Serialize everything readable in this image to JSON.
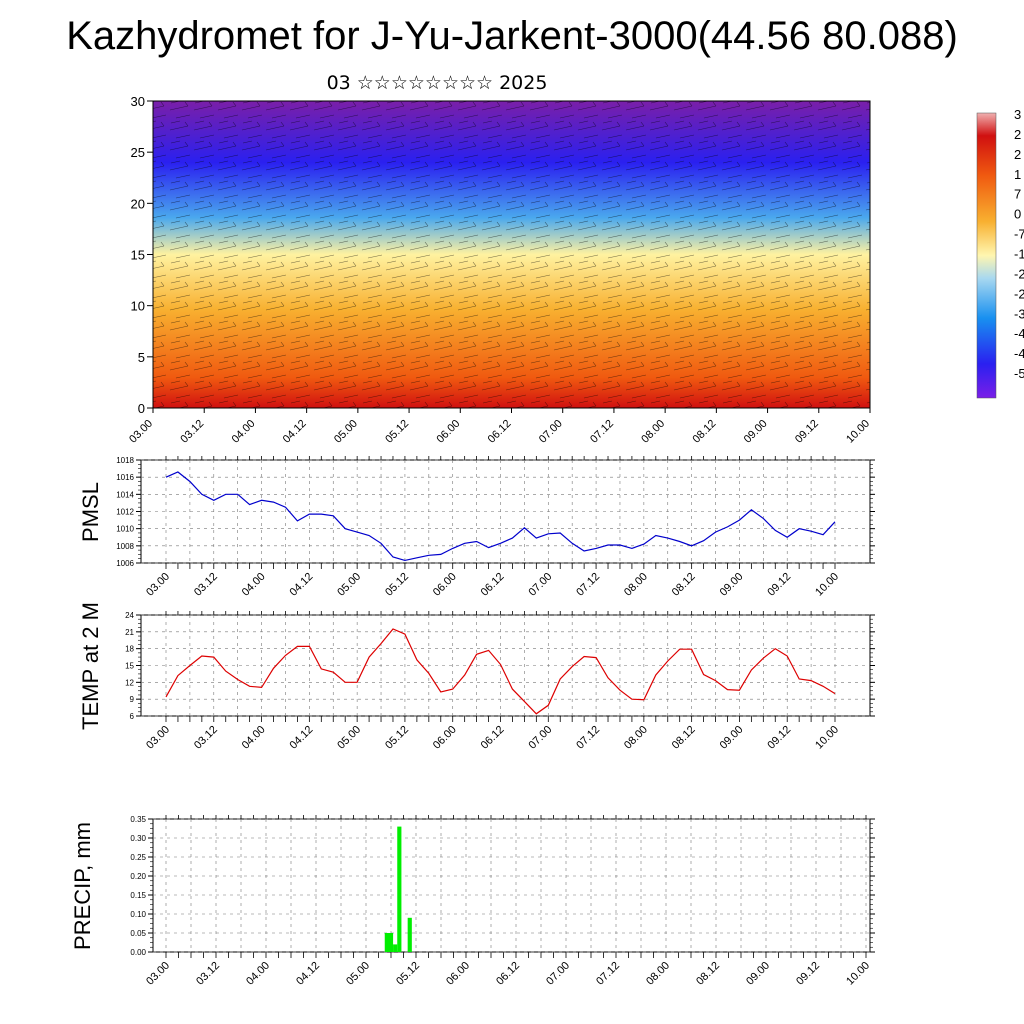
{
  "title": "Kazhydromet for J-Yu-Jarkent-3000(44.56 80.088)",
  "subtitle": "03 ☆☆☆☆☆☆☆☆ 2025",
  "colorbar_labels": [
    "3",
    "2",
    "2",
    "1",
    "7",
    "0",
    "-7",
    "-1",
    "-2",
    "-2",
    "-3",
    "-4",
    "-4",
    "-5"
  ],
  "chart_data": [
    {
      "type": "heatmap",
      "ylim": [
        0,
        30
      ],
      "y_ticks": [
        "0",
        "5",
        "10",
        "15",
        "20",
        "25",
        "30"
      ],
      "x_ticks": [
        "03.00",
        "03.12",
        "04.00",
        "04.12",
        "05.00",
        "05.12",
        "06.00",
        "06.12",
        "07.00",
        "07.12",
        "08.00",
        "08.12",
        "09.00",
        "09.12",
        "10.00"
      ],
      "colors": [
        "#7a1fa8",
        "#2a20f0",
        "#4aa8ee",
        "#fff2a0",
        "#f8b030",
        "#f05a10",
        "#d01010"
      ]
    },
    {
      "type": "line",
      "ylabel": "PMSL",
      "ylim": [
        1006,
        1018
      ],
      "y_ticks": [
        "1018",
        "1016",
        "1014",
        "1012",
        "1010",
        "1008",
        "1006"
      ],
      "x_ticks": [
        "03.00",
        "03.12",
        "04.00",
        "04.12",
        "05.00",
        "05.12",
        "06.00",
        "06.12",
        "07.00",
        "07.12",
        "08.00",
        "08.12",
        "09.00",
        "09.12",
        "10.00"
      ],
      "color": "#0000cc",
      "values": [
        1016.0,
        1016.6,
        1015.5,
        1014.0,
        1013.3,
        1014.0,
        1014.0,
        1012.8,
        1013.3,
        1013.1,
        1012.5,
        1010.9,
        1011.7,
        1011.7,
        1011.5,
        1010.0,
        1009.6,
        1009.2,
        1008.3,
        1006.7,
        1006.3,
        1006.6,
        1006.9,
        1007.0,
        1007.7,
        1008.3,
        1008.5,
        1007.8,
        1008.3,
        1008.9,
        1010.1,
        1008.9,
        1009.4,
        1009.5,
        1008.3,
        1007.4,
        1007.7,
        1008.1,
        1008.1,
        1007.7,
        1008.2,
        1009.2,
        1008.9,
        1008.5,
        1008.0,
        1008.6,
        1009.6,
        1010.2,
        1011.0,
        1012.2,
        1011.2,
        1009.8,
        1009.0,
        1010.0,
        1009.7,
        1009.3,
        1010.8
      ]
    },
    {
      "type": "line",
      "ylabel": "TEMP at 2 M",
      "ylim": [
        6,
        24
      ],
      "y_ticks": [
        "24",
        "21",
        "18",
        "15",
        "12",
        "9",
        "6"
      ],
      "x_ticks": [
        "03.00",
        "03.12",
        "04.00",
        "04.12",
        "05.00",
        "05.12",
        "06.00",
        "06.12",
        "07.00",
        "07.12",
        "08.00",
        "08.12",
        "09.00",
        "09.12",
        "10.00"
      ],
      "color": "#dd0000",
      "values": [
        9.4,
        13.2,
        15.0,
        16.7,
        16.5,
        14.0,
        12.5,
        11.3,
        11.1,
        14.5,
        16.8,
        18.4,
        18.4,
        14.4,
        13.8,
        12.0,
        12.0,
        16.5,
        18.9,
        21.5,
        20.6,
        16.0,
        13.6,
        10.3,
        10.8,
        13.3,
        17.0,
        17.7,
        15.2,
        10.8,
        8.6,
        6.4,
        7.9,
        12.6,
        14.8,
        16.6,
        16.4,
        12.8,
        10.6,
        9.0,
        8.9,
        13.3,
        15.8,
        17.9,
        17.9,
        13.4,
        12.3,
        10.7,
        10.6,
        14.2,
        16.3,
        18.0,
        16.7,
        12.6,
        12.3,
        11.3,
        10.0
      ]
    },
    {
      "type": "bar",
      "ylabel": "PRECIP, mm",
      "ylim": [
        0,
        0.35
      ],
      "y_ticks": [
        "0.35",
        "0.30",
        "0.25",
        "0.20",
        "0.15",
        "0.10",
        "0.05",
        "0.00"
      ],
      "x_ticks": [
        "03.00",
        "03.12",
        "04.00",
        "04.12",
        "05.00",
        "05.12",
        "06.00",
        "06.12",
        "07.00",
        "07.12",
        "08.00",
        "08.12",
        "09.00",
        "09.12",
        "10.00"
      ],
      "color": "#00ee00",
      "bars": [
        {
          "t0": 52.5,
          "t1": 54.5,
          "value": 0.05
        },
        {
          "t0": 54.5,
          "t1": 55.5,
          "value": 0.02
        },
        {
          "t0": 55.5,
          "t1": 56.5,
          "value": 0.33
        },
        {
          "t0": 58.0,
          "t1": 59.0,
          "value": 0.09
        }
      ]
    }
  ]
}
